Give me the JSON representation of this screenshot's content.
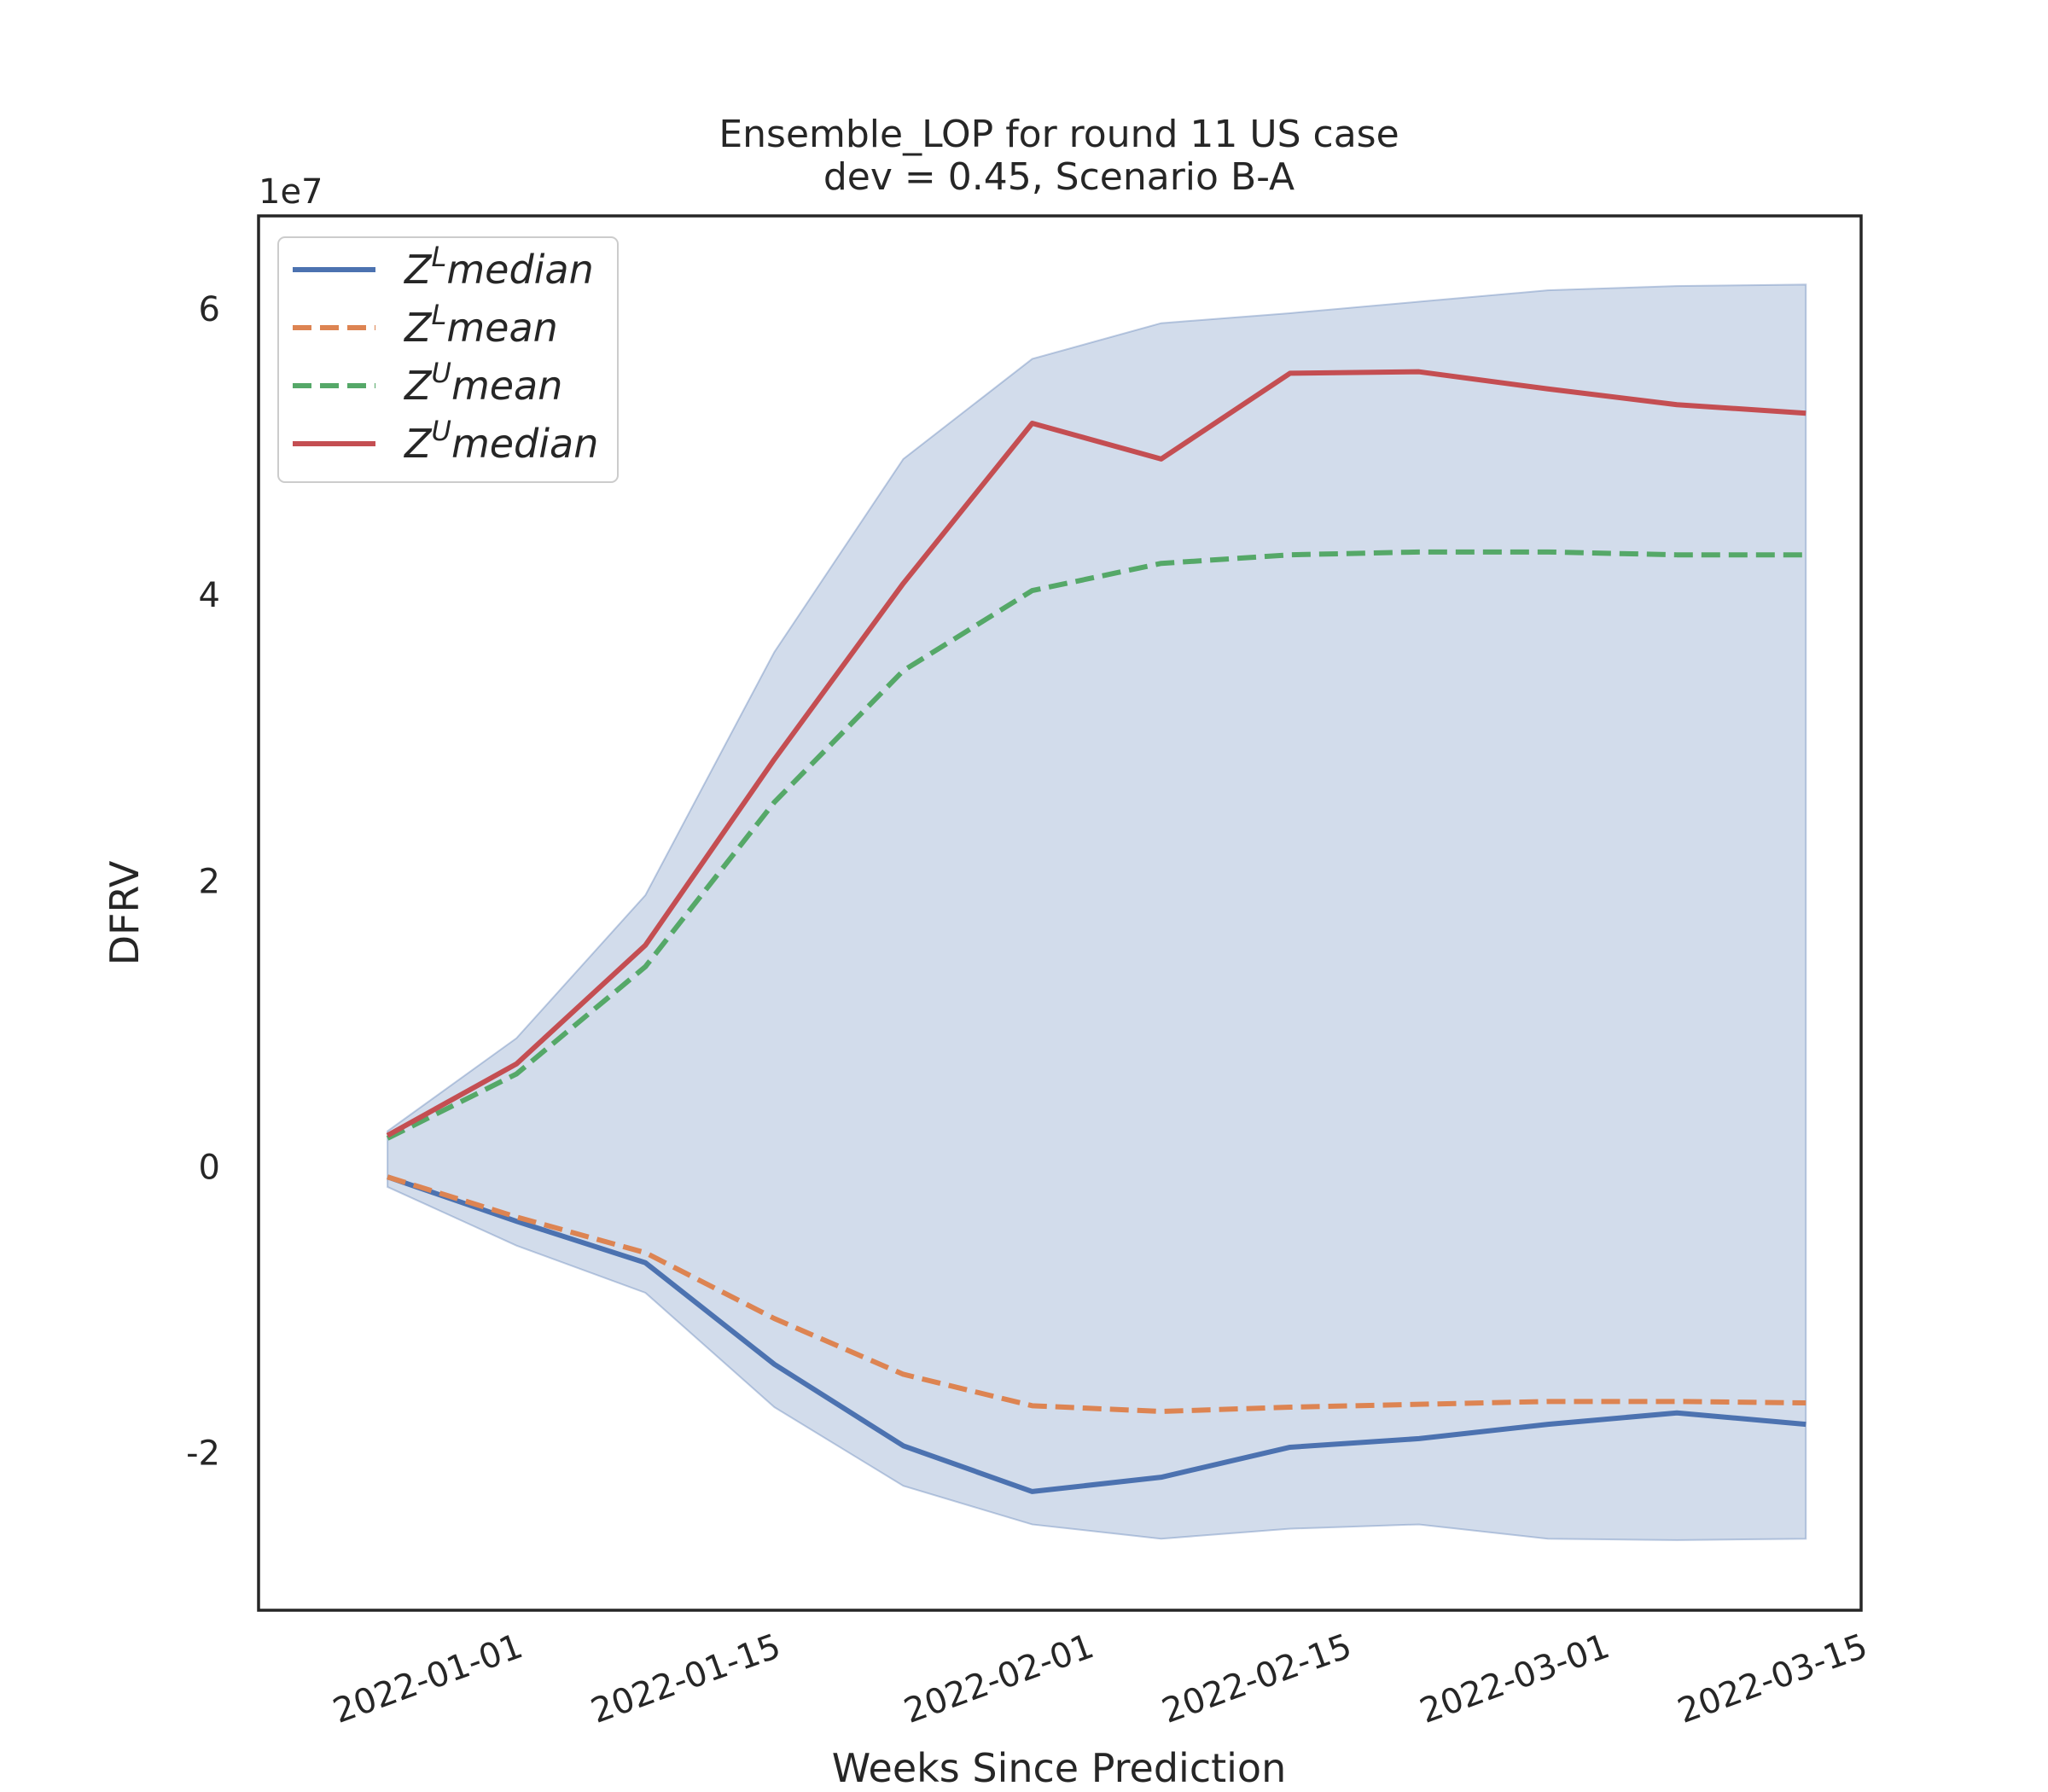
{
  "chart_data": {
    "type": "line",
    "title_line1": "Ensemble_LOP for round 11 US case",
    "title_line2": "dev = 0.45, Scenario B-A",
    "xlabel": "Weeks Since Prediction",
    "ylabel": "DFRV",
    "y_offset_label": "1e7",
    "x_dates": [
      "2021-12-25",
      "2022-01-01",
      "2022-01-08",
      "2022-01-15",
      "2022-01-22",
      "2022-01-29",
      "2022-02-05",
      "2022-02-12",
      "2022-02-19",
      "2022-02-26",
      "2022-03-05",
      "2022-03-12"
    ],
    "x_tick_labels": [
      "2022-01-01",
      "2022-01-15",
      "2022-02-01",
      "2022-02-15",
      "2022-03-01",
      "2022-03-15"
    ],
    "y_ticks": [
      -2,
      0,
      2,
      4,
      6
    ],
    "y_tick_labels": [
      "-2",
      "0",
      "2",
      "4",
      "6"
    ],
    "xlim": [
      "2021-12-18",
      "2022-03-15"
    ],
    "ylim": [
      -3.1,
      6.65
    ],
    "band": {
      "upper": [
        0.25,
        0.9,
        1.9,
        3.6,
        4.95,
        5.65,
        5.9,
        5.97,
        6.05,
        6.13,
        6.16,
        6.17
      ],
      "lower": [
        -0.14,
        -0.55,
        -0.88,
        -1.68,
        -2.23,
        -2.5,
        -2.6,
        -2.53,
        -2.5,
        -2.6,
        -2.61,
        -2.6
      ],
      "color": "#4c72b0",
      "opacity": 0.25
    },
    "series": [
      {
        "name": "median",
        "superscript": "L",
        "color": "#4c72b0",
        "dashed": false,
        "values": [
          -0.07,
          -0.38,
          -0.67,
          -1.38,
          -1.95,
          -2.27,
          -2.17,
          -1.96,
          -1.9,
          -1.8,
          -1.72,
          -1.8
        ]
      },
      {
        "name": "mean",
        "superscript": "L",
        "color": "#dd8452",
        "dashed": true,
        "values": [
          -0.07,
          -0.35,
          -0.6,
          -1.06,
          -1.45,
          -1.67,
          -1.71,
          -1.68,
          -1.66,
          -1.64,
          -1.64,
          -1.65
        ]
      },
      {
        "name": "mean",
        "superscript": "U",
        "color": "#55a868",
        "dashed": true,
        "values": [
          0.2,
          0.65,
          1.4,
          2.55,
          3.47,
          4.03,
          4.22,
          4.28,
          4.3,
          4.3,
          4.28,
          4.28
        ]
      },
      {
        "name": "median",
        "superscript": "U",
        "color": "#c44e52",
        "dashed": false,
        "values": [
          0.22,
          0.72,
          1.55,
          2.85,
          4.08,
          5.2,
          4.95,
          5.55,
          5.56,
          5.44,
          5.33,
          5.27
        ]
      }
    ],
    "legend_position": "upper-left",
    "grid": false
  }
}
